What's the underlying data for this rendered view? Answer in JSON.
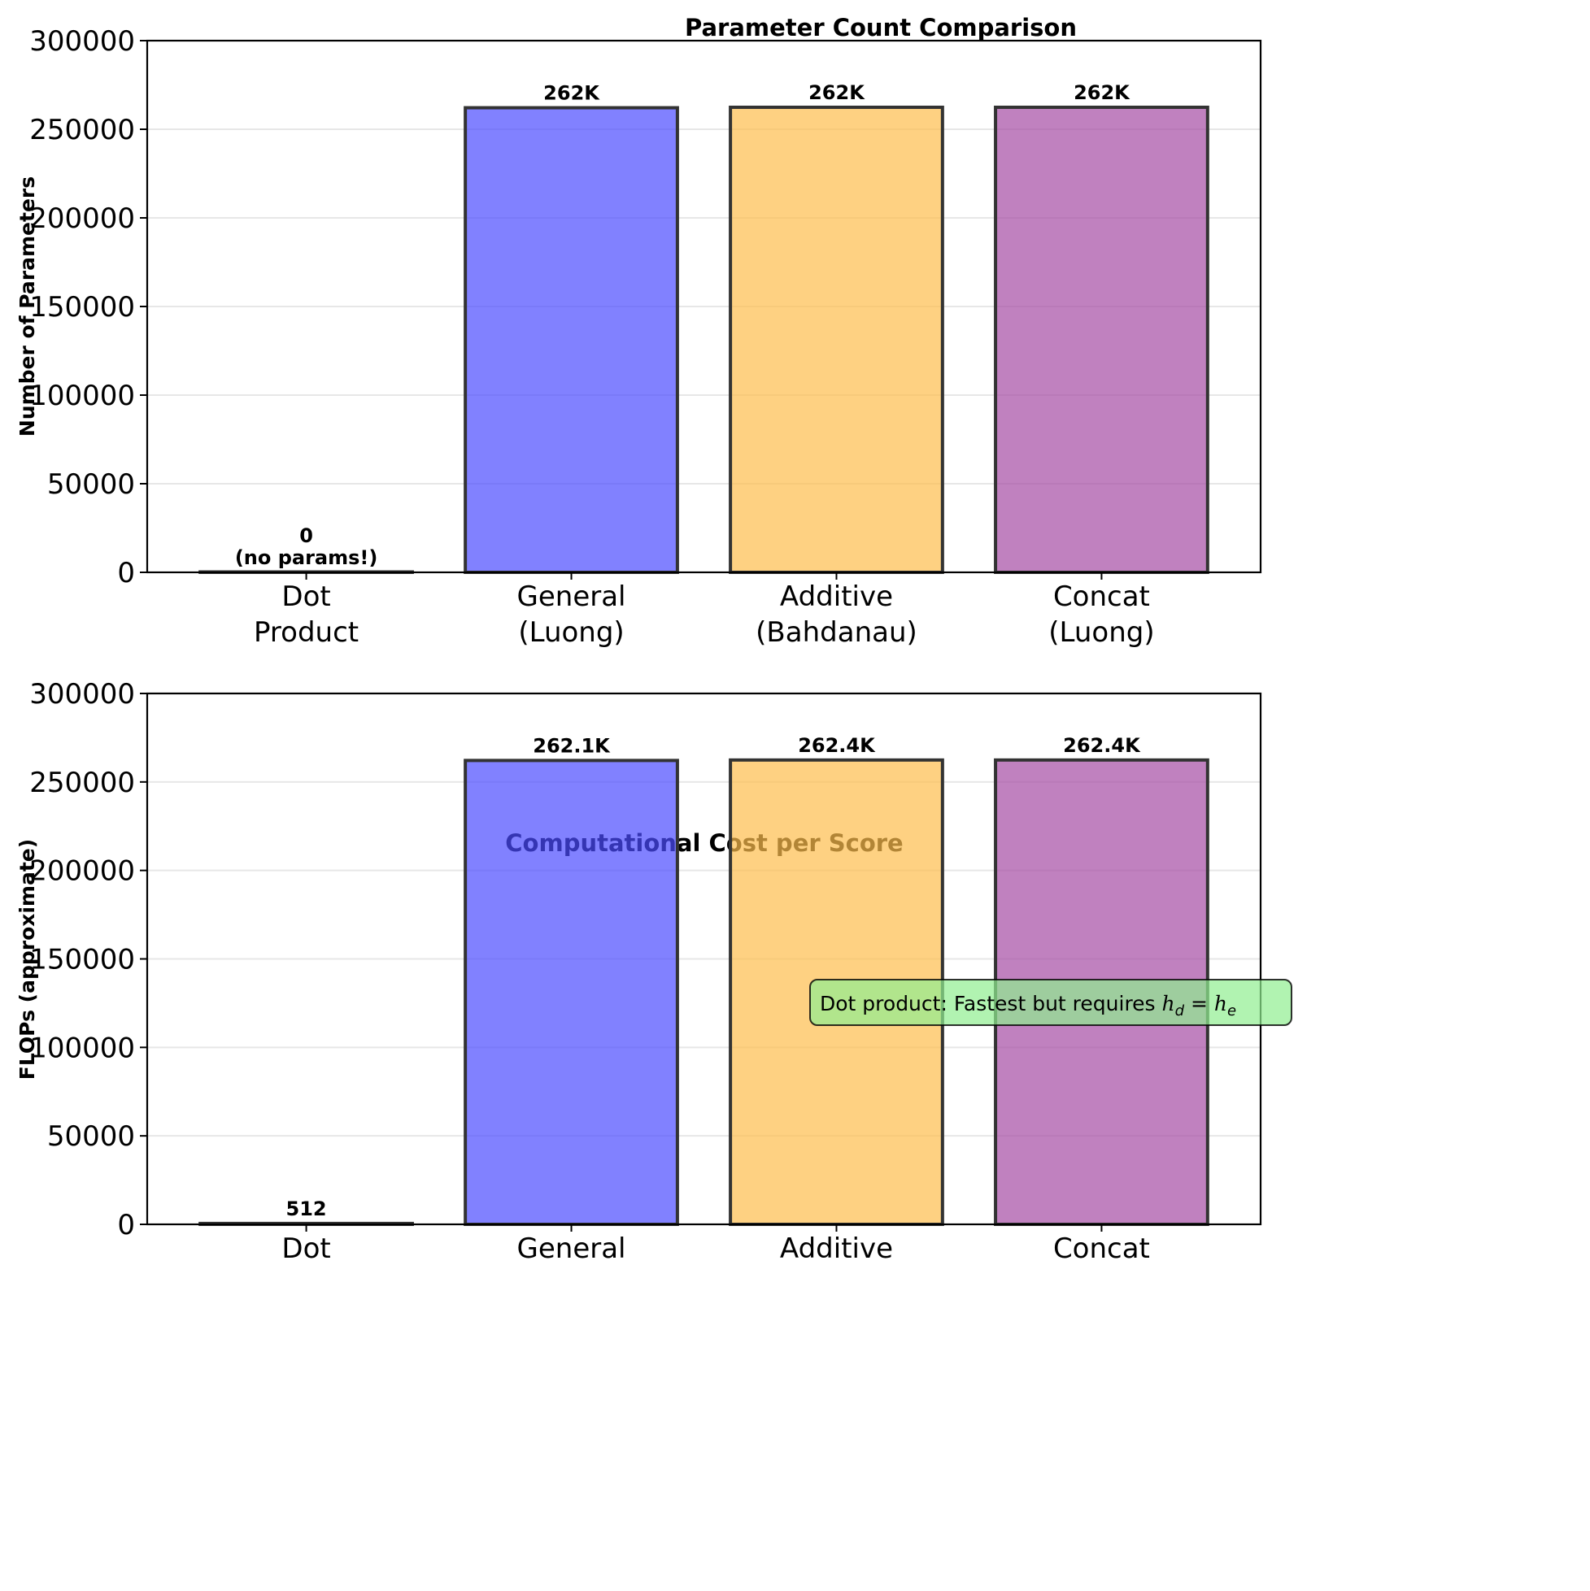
{
  "chart_data": [
    {
      "type": "bar",
      "title": "Parameter Count Comparison",
      "xlabel": "",
      "ylabel": "Number of Parameters",
      "ylim": [
        0,
        300000
      ],
      "yticks": [
        0,
        50000,
        100000,
        150000,
        200000,
        250000,
        300000
      ],
      "ytick_labels": [
        "0",
        "50000",
        "100000",
        "150000",
        "200000",
        "250000",
        "300000"
      ],
      "grid": "y",
      "categories": [
        "Dot\nProduct",
        "General\n(Luong)",
        "Additive\n(Bahdanau)",
        "Concat\n(Luong)"
      ],
      "category_lines": [
        [
          "Dot",
          "Product"
        ],
        [
          "General",
          "(Luong)"
        ],
        [
          "Additive",
          "(Bahdanau)"
        ],
        [
          "Concat",
          "(Luong)"
        ]
      ],
      "values": [
        0,
        262144,
        262400,
        262400
      ],
      "data_labels": [
        [
          "0",
          "(no params!)"
        ],
        [
          "262K"
        ],
        [
          "262K"
        ],
        [
          "262K"
        ]
      ],
      "colors": [
        "#00008b",
        "#4b4bff",
        "#fdbd4d",
        "#a54ba4"
      ],
      "edge_color": "#333333"
    },
    {
      "type": "bar",
      "title": "Computational Cost per Score",
      "xlabel": "",
      "ylabel": "FLOPs (approximate)",
      "ylim": [
        0,
        300000
      ],
      "yticks": [
        0,
        50000,
        100000,
        150000,
        200000,
        250000,
        300000
      ],
      "ytick_labels": [
        "0",
        "50000",
        "100000",
        "150000",
        "200000",
        "250000",
        "300000"
      ],
      "grid": "y",
      "categories": [
        "Dot",
        "General",
        "Additive",
        "Concat"
      ],
      "category_lines": [
        [
          "Dot"
        ],
        [
          "General"
        ],
        [
          "Additive"
        ],
        [
          "Concat"
        ]
      ],
      "values": [
        512,
        262144,
        262400,
        262400
      ],
      "data_labels": [
        [
          "512"
        ],
        [
          "262.1K"
        ],
        [
          "262.4K"
        ],
        [
          "262.4K"
        ]
      ],
      "colors": [
        "#2e8b57",
        "#4b4bff",
        "#fdbd4d",
        "#a54ba4"
      ],
      "edge_color": "#333333",
      "annotation": {
        "text_prefix": "Dot product: Fastest but requires ",
        "math_lhs": "h",
        "math_lhs_sub": "d",
        "math_eq": " = ",
        "math_rhs": "h",
        "math_rhs_sub": "e",
        "box_color": "#90ee90",
        "position": "top-center"
      }
    }
  ]
}
